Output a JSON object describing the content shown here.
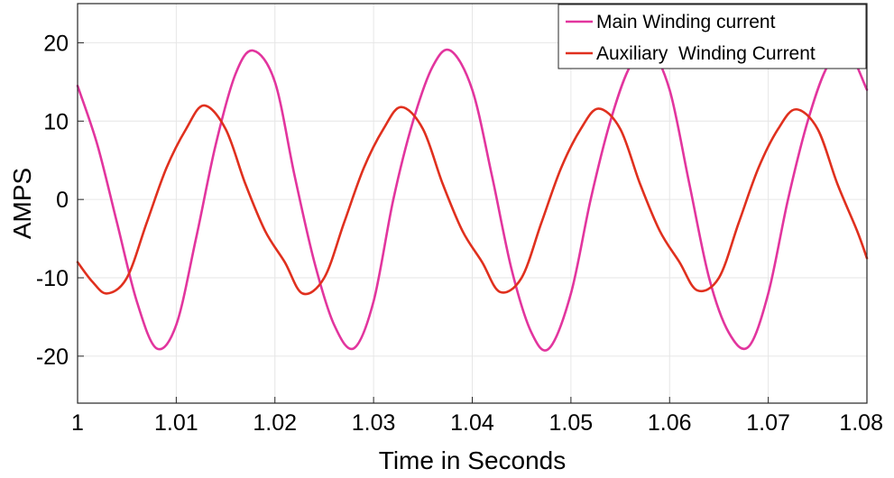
{
  "chart_data": {
    "type": "line",
    "title": "",
    "xlabel": "Time in Seconds",
    "ylabel": "AMPS",
    "xlim": [
      1.0,
      1.08
    ],
    "ylim": [
      -26,
      25
    ],
    "grid": true,
    "legend_position": "top-right",
    "x_ticks": [
      {
        "value": 1.0,
        "label": "1"
      },
      {
        "value": 1.01,
        "label": "1.01"
      },
      {
        "value": 1.02,
        "label": "1.02"
      },
      {
        "value": 1.03,
        "label": "1.03"
      },
      {
        "value": 1.04,
        "label": "1.04"
      },
      {
        "value": 1.05,
        "label": "1.05"
      },
      {
        "value": 1.06,
        "label": "1.06"
      },
      {
        "value": 1.07,
        "label": "1.07"
      },
      {
        "value": 1.08,
        "label": "1.08"
      }
    ],
    "y_ticks": [
      {
        "value": 20,
        "label": "20"
      },
      {
        "value": 10,
        "label": "10"
      },
      {
        "value": 0,
        "label": "0"
      },
      {
        "value": -10,
        "label": "-10"
      },
      {
        "value": -20,
        "label": "-20"
      }
    ],
    "series": [
      {
        "name": "Main Winding current",
        "color": "#e2359e",
        "points": [
          [
            1.0,
            14.5
          ],
          [
            1.002,
            7
          ],
          [
            1.004,
            -3
          ],
          [
            1.006,
            -13
          ],
          [
            1.008,
            -19
          ],
          [
            1.01,
            -16
          ],
          [
            1.012,
            -5
          ],
          [
            1.014,
            7
          ],
          [
            1.016,
            16
          ],
          [
            1.0178,
            19
          ],
          [
            1.02,
            15
          ],
          [
            1.022,
            3
          ],
          [
            1.024,
            -8
          ],
          [
            1.026,
            -16
          ],
          [
            1.028,
            -19
          ],
          [
            1.03,
            -13
          ],
          [
            1.032,
            0
          ],
          [
            1.034,
            10
          ],
          [
            1.036,
            17
          ],
          [
            1.0378,
            19
          ],
          [
            1.04,
            14
          ],
          [
            1.042,
            3
          ],
          [
            1.044,
            -9
          ],
          [
            1.046,
            -17
          ],
          [
            1.0478,
            -19
          ],
          [
            1.05,
            -12
          ],
          [
            1.052,
            0
          ],
          [
            1.054,
            10
          ],
          [
            1.056,
            17
          ],
          [
            1.058,
            19
          ],
          [
            1.06,
            14
          ],
          [
            1.062,
            2
          ],
          [
            1.064,
            -10
          ],
          [
            1.066,
            -17
          ],
          [
            1.068,
            -18.8
          ],
          [
            1.07,
            -12
          ],
          [
            1.072,
            0
          ],
          [
            1.074,
            10
          ],
          [
            1.076,
            17
          ],
          [
            1.078,
            19
          ],
          [
            1.08,
            14
          ]
        ]
      },
      {
        "name": "Auxiliary  Winding Current",
        "color": "#e0301e",
        "points": [
          [
            1.0,
            -8
          ],
          [
            1.0015,
            -10.5
          ],
          [
            1.003,
            -12
          ],
          [
            1.005,
            -10
          ],
          [
            1.007,
            -3
          ],
          [
            1.009,
            4
          ],
          [
            1.011,
            9
          ],
          [
            1.0128,
            12
          ],
          [
            1.015,
            9
          ],
          [
            1.017,
            2
          ],
          [
            1.019,
            -4
          ],
          [
            1.021,
            -8
          ],
          [
            1.0228,
            -12
          ],
          [
            1.025,
            -10
          ],
          [
            1.027,
            -3
          ],
          [
            1.029,
            4
          ],
          [
            1.031,
            9
          ],
          [
            1.0328,
            11.8
          ],
          [
            1.035,
            9
          ],
          [
            1.037,
            2
          ],
          [
            1.039,
            -4
          ],
          [
            1.041,
            -8
          ],
          [
            1.0428,
            -11.8
          ],
          [
            1.045,
            -10
          ],
          [
            1.047,
            -3
          ],
          [
            1.049,
            4
          ],
          [
            1.051,
            9
          ],
          [
            1.0528,
            11.6
          ],
          [
            1.055,
            9
          ],
          [
            1.057,
            2
          ],
          [
            1.059,
            -4
          ],
          [
            1.061,
            -8
          ],
          [
            1.0628,
            -11.6
          ],
          [
            1.065,
            -10
          ],
          [
            1.067,
            -3
          ],
          [
            1.069,
            4
          ],
          [
            1.071,
            9
          ],
          [
            1.0728,
            11.5
          ],
          [
            1.075,
            9
          ],
          [
            1.077,
            2
          ],
          [
            1.079,
            -4
          ],
          [
            1.08,
            -7.5
          ]
        ]
      }
    ]
  }
}
